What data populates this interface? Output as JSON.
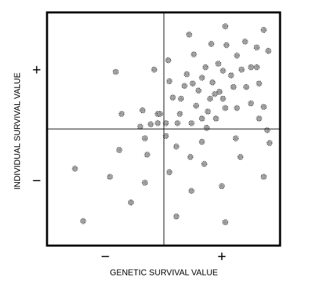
{
  "chart_data": {
    "type": "scatter",
    "x_label": "GENETIC SURVIVAL VALUE",
    "y_label": "INDIVIDUAL SURVIVAL VALUE",
    "xlim": [
      -1,
      1
    ],
    "ylim": [
      -1,
      1
    ],
    "xticks": [
      {
        "value": -0.5,
        "label": "−"
      },
      {
        "value": 0.5,
        "label": "+"
      }
    ],
    "yticks": [
      {
        "value": -0.45,
        "label": "−"
      },
      {
        "value": 0.5,
        "label": "+"
      }
    ],
    "color": "#000000",
    "x": [
      -0.41,
      -0.08,
      -0.36,
      -0.18,
      -0.05,
      -0.2,
      -0.11,
      -0.05,
      0.02,
      -0.03,
      -0.16,
      -0.14,
      -0.38,
      -0.76,
      -0.46,
      -0.16,
      -0.28,
      -0.69,
      0.53,
      0.86,
      0.22,
      0.26,
      0.54,
      0.7,
      0.8,
      0.41,
      0.9,
      0.04,
      0.36,
      0.47,
      0.63,
      0.2,
      0.67,
      0.75,
      0.8,
      0.51,
      0.33,
      0.58,
      0.05,
      0.18,
      0.25,
      0.3,
      0.42,
      0.48,
      0.6,
      0.71,
      0.82,
      0.08,
      0.15,
      0.4,
      0.51,
      0.75,
      0.86,
      0.63,
      0.53,
      0.38,
      0.28,
      0.14,
      0.33,
      0.45,
      0.12,
      0.24,
      0.37,
      0.82,
      0.89,
      0.44,
      0.02,
      0.11,
      0.33,
      0.62,
      0.91,
      0.23,
      0.66,
      0.35,
      0.05,
      0.86,
      0.5,
      0.24,
      0.11,
      0.53
    ],
    "values": [
      0.49,
      0.51,
      0.13,
      0.16,
      0.13,
      0.02,
      0.04,
      0.05,
      0.05,
      0.13,
      -0.08,
      -0.22,
      -0.18,
      -0.34,
      -0.41,
      -0.46,
      -0.63,
      -0.79,
      0.88,
      0.85,
      0.81,
      0.64,
      0.72,
      0.75,
      0.7,
      0.73,
      0.67,
      0.59,
      0.53,
      0.56,
      0.63,
      0.47,
      0.51,
      0.53,
      0.53,
      0.5,
      0.44,
      0.46,
      0.41,
      0.37,
      0.39,
      0.33,
      0.4,
      0.32,
      0.36,
      0.36,
      0.39,
      0.27,
      0.26,
      0.26,
      0.26,
      0.22,
      0.19,
      0.18,
      0.18,
      0.15,
      0.2,
      0.13,
      0.09,
      0.09,
      0.05,
      0.05,
      0.01,
      0.09,
      -0.01,
      0.3,
      -0.06,
      -0.15,
      -0.11,
      -0.08,
      -0.12,
      -0.24,
      -0.24,
      -0.3,
      -0.37,
      -0.41,
      -0.49,
      -0.53,
      -0.75,
      -0.8
    ]
  }
}
